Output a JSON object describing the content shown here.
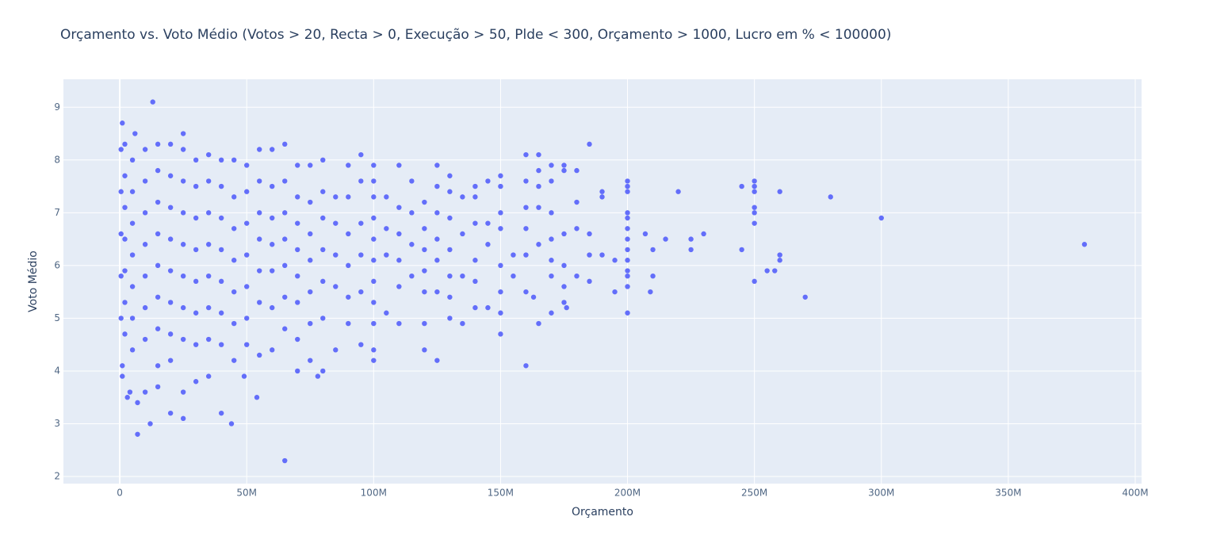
{
  "chart_data": {
    "type": "scatter",
    "title": "Orçamento vs. Voto Médio (Votos > 20, Recta > 0, Execução > 50, Plde < 300, Orçamento > 1000, Lucro em % < 100000)",
    "x_label": "Orçamento",
    "y_label": "Voto Médio",
    "xlim": [
      -22200000,
      402500000
    ],
    "ylim": [
      1.865,
      9.53
    ],
    "xticks": [
      0,
      {
        "value": 50000000,
        "label": "50M"
      },
      {
        "value": 100000000,
        "label": "100M"
      },
      {
        "value": 150000000,
        "label": "150M"
      },
      {
        "value": 200000000,
        "label": "200M"
      },
      {
        "value": 250000000,
        "label": "250M"
      },
      {
        "value": 300000000,
        "label": "300M"
      },
      {
        "value": 350000000,
        "label": "350M"
      },
      {
        "value": 400000000,
        "label": "400M"
      }
    ],
    "yticks": [
      2,
      3,
      4,
      5,
      6,
      7,
      8,
      9
    ],
    "grid": true,
    "color": "#636efa",
    "x": [
      380000000,
      300000000,
      280000000,
      270000000,
      260000000,
      260000000,
      260000000,
      258000000,
      255000000,
      250000000,
      250000000,
      250000000,
      250000000,
      250000000,
      250000000,
      250000000,
      245000000,
      245000000,
      230000000,
      225000000,
      225000000,
      220000000,
      215000000,
      210000000,
      210000000,
      209000000,
      207000000,
      200000000,
      200000000,
      200000000,
      200000000,
      200000000,
      200000000,
      200000000,
      200000000,
      200000000,
      200000000,
      200000000,
      200000000,
      200000000,
      195000000,
      195000000,
      190000000,
      190000000,
      190000000,
      185000000,
      185000000,
      185000000,
      185000000,
      180000000,
      180000000,
      180000000,
      180000000,
      175000000,
      175000000,
      175000000,
      175000000,
      175000000,
      175000000,
      176000000,
      170000000,
      170000000,
      170000000,
      170000000,
      170000000,
      170000000,
      170000000,
      165000000,
      165000000,
      165000000,
      165000000,
      165000000,
      165000000,
      163000000,
      160000000,
      160000000,
      160000000,
      160000000,
      160000000,
      160000000,
      160000000,
      155000000,
      155000000,
      150000000,
      150000000,
      150000000,
      150000000,
      150000000,
      150000000,
      150000000,
      150000000,
      145000000,
      145000000,
      145000000,
      145000000,
      140000000,
      140000000,
      140000000,
      140000000,
      140000000,
      140000000,
      135000000,
      135000000,
      135000000,
      135000000,
      130000000,
      130000000,
      130000000,
      130000000,
      130000000,
      130000000,
      130000000,
      125000000,
      125000000,
      125000000,
      125000000,
      125000000,
      125000000,
      125000000,
      120000000,
      120000000,
      120000000,
      120000000,
      120000000,
      120000000,
      120000000,
      115000000,
      115000000,
      115000000,
      115000000,
      110000000,
      110000000,
      110000000,
      110000000,
      110000000,
      110000000,
      105000000,
      105000000,
      105000000,
      105000000,
      100000000,
      100000000,
      100000000,
      100000000,
      100000000,
      100000000,
      100000000,
      100000000,
      100000000,
      100000000,
      100000000,
      95000000,
      95000000,
      95000000,
      95000000,
      95000000,
      95000000,
      90000000,
      90000000,
      90000000,
      90000000,
      90000000,
      90000000,
      85000000,
      85000000,
      85000000,
      85000000,
      85000000,
      80000000,
      80000000,
      80000000,
      80000000,
      80000000,
      80000000,
      80000000,
      78000000,
      75000000,
      75000000,
      75000000,
      75000000,
      75000000,
      75000000,
      75000000,
      70000000,
      70000000,
      70000000,
      70000000,
      70000000,
      70000000,
      70000000,
      70000000,
      65000000,
      65000000,
      65000000,
      65000000,
      65000000,
      65000000,
      65000000,
      65000000,
      60000000,
      60000000,
      60000000,
      60000000,
      60000000,
      60000000,
      60000000,
      55000000,
      55000000,
      55000000,
      55000000,
      55000000,
      55000000,
      55000000,
      54000000,
      50000000,
      50000000,
      50000000,
      50000000,
      50000000,
      50000000,
      50000000,
      49000000,
      45000000,
      45000000,
      45000000,
      45000000,
      45000000,
      45000000,
      45000000,
      44000000,
      40000000,
      40000000,
      40000000,
      40000000,
      40000000,
      40000000,
      40000000,
      40000000,
      35000000,
      35000000,
      35000000,
      35000000,
      35000000,
      35000000,
      35000000,
      35000000,
      30000000,
      30000000,
      30000000,
      30000000,
      30000000,
      30000000,
      30000000,
      30000000,
      25000000,
      25000000,
      25000000,
      25000000,
      25000000,
      25000000,
      25000000,
      25000000,
      25000000,
      25000000,
      20000000,
      20000000,
      20000000,
      20000000,
      20000000,
      20000000,
      20000000,
      20000000,
      20000000,
      15000000,
      15000000,
      15000000,
      15000000,
      15000000,
      15000000,
      15000000,
      15000000,
      15000000,
      13000000,
      12000000,
      10000000,
      10000000,
      10000000,
      10000000,
      10000000,
      10000000,
      10000000,
      10000000,
      7000000,
      7000000,
      6000000,
      5000000,
      5000000,
      5000000,
      5000000,
      5000000,
      5000000,
      5000000,
      4000000,
      3000000,
      2000000,
      2000000,
      2000000,
      2000000,
      2000000,
      2000000,
      2000000,
      1000000,
      1000000,
      1000000,
      500000,
      500000,
      500000,
      500000,
      500000
    ],
    "y": [
      6.4,
      6.9,
      7.3,
      5.4,
      7.4,
      6.2,
      6.1,
      5.9,
      5.9,
      7.6,
      7.5,
      7.4,
      7.1,
      7.0,
      6.8,
      5.7,
      7.5,
      6.3,
      6.6,
      6.5,
      6.3,
      7.4,
      6.5,
      6.3,
      5.8,
      5.5,
      6.6,
      7.6,
      7.5,
      7.4,
      7.0,
      6.9,
      6.7,
      6.5,
      6.3,
      6.1,
      5.9,
      5.8,
      5.6,
      5.1,
      6.1,
      5.5,
      7.4,
      7.3,
      6.2,
      8.3,
      6.6,
      6.2,
      5.7,
      7.8,
      7.2,
      6.7,
      5.8,
      7.9,
      7.8,
      6.6,
      6.0,
      5.6,
      5.3,
      5.2,
      7.9,
      7.6,
      7.0,
      6.5,
      6.1,
      5.8,
      5.1,
      8.1,
      7.8,
      7.5,
      7.1,
      6.4,
      4.9,
      5.4,
      8.1,
      7.6,
      7.1,
      6.7,
      6.2,
      5.5,
      4.1,
      6.2,
      5.8,
      7.7,
      7.5,
      7.0,
      6.7,
      6.0,
      5.5,
      5.1,
      4.7,
      7.6,
      6.8,
      6.4,
      5.2,
      7.5,
      7.3,
      6.8,
      6.1,
      5.7,
      5.2,
      7.3,
      6.6,
      5.8,
      4.9,
      7.7,
      7.4,
      6.9,
      6.3,
      5.8,
      5.4,
      5.0,
      7.9,
      7.5,
      7.0,
      6.5,
      6.1,
      5.5,
      4.2,
      7.2,
      6.7,
      6.3,
      5.9,
      5.5,
      4.9,
      4.4,
      7.6,
      7.0,
      6.4,
      5.8,
      7.9,
      7.1,
      6.6,
      6.1,
      5.6,
      4.9,
      7.3,
      6.7,
      6.2,
      5.1,
      7.9,
      7.6,
      7.3,
      6.9,
      6.5,
      6.1,
      5.7,
      5.3,
      4.9,
      4.4,
      4.2,
      8.1,
      7.6,
      6.8,
      6.2,
      5.5,
      4.5,
      7.9,
      7.3,
      6.6,
      6.0,
      5.4,
      4.9,
      7.3,
      6.8,
      6.2,
      5.6,
      4.4,
      8.0,
      7.4,
      6.9,
      6.3,
      5.7,
      5.0,
      4.0,
      3.9,
      7.9,
      7.2,
      6.6,
      6.1,
      5.5,
      4.9,
      4.2,
      7.9,
      7.3,
      6.8,
      6.3,
      5.8,
      5.3,
      4.6,
      4.0,
      8.3,
      7.6,
      7.0,
      6.5,
      6.0,
      5.4,
      4.8,
      2.3,
      8.2,
      7.5,
      6.9,
      6.4,
      5.9,
      5.2,
      4.4,
      8.2,
      7.6,
      7.0,
      6.5,
      5.9,
      5.3,
      4.3,
      3.5,
      7.9,
      7.4,
      6.8,
      6.2,
      5.6,
      5.0,
      4.5,
      3.9,
      8.0,
      7.3,
      6.7,
      6.1,
      5.5,
      4.9,
      4.2,
      3.0,
      8.0,
      7.5,
      6.9,
      6.3,
      5.7,
      5.1,
      4.5,
      3.2,
      8.1,
      7.6,
      7.0,
      6.4,
      5.8,
      5.2,
      4.6,
      3.9,
      8.0,
      7.5,
      6.9,
      6.3,
      5.7,
      5.1,
      4.5,
      3.8,
      8.5,
      8.2,
      7.6,
      7.0,
      6.4,
      5.8,
      5.2,
      4.6,
      3.6,
      3.1,
      8.3,
      7.7,
      7.1,
      6.5,
      5.9,
      5.3,
      4.7,
      4.2,
      3.2,
      8.3,
      7.8,
      7.2,
      6.6,
      6.0,
      5.4,
      4.8,
      4.1,
      3.7,
      9.1,
      3.0,
      8.2,
      7.6,
      7.0,
      6.4,
      5.8,
      5.2,
      4.6,
      3.6,
      2.8,
      3.4,
      8.5,
      8.0,
      7.4,
      6.8,
      6.2,
      5.6,
      5.0,
      4.4,
      3.6,
      3.5,
      8.3,
      7.7,
      7.1,
      6.5,
      5.9,
      5.3,
      4.7,
      8.7,
      4.1,
      3.9,
      8.2,
      7.4,
      6.6,
      5.8,
      5.0
    ]
  }
}
